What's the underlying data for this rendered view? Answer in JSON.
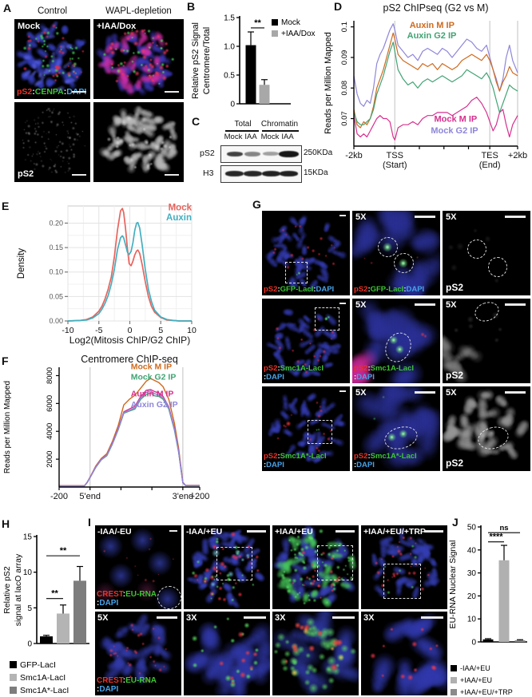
{
  "panels": {
    "A": {
      "tag": "A",
      "col1": "Control",
      "col2": "WAPL-depletion",
      "mock": "Mock",
      "iaa": "+IAA/Dox",
      "ps2": "pS2",
      "cenpa": "CENPA",
      "dapi": "DAPI",
      "sep": ":"
    },
    "B": {
      "tag": "B"
    },
    "C": {
      "tag": "C",
      "total": "Total",
      "chromatin": "Chromatin",
      "mock": "Mock",
      "iaa": "IAA",
      "ps2": "pS2",
      "h3": "H3",
      "mw_ps2": "250KDa",
      "mw_h3": "15KDa"
    },
    "D": {
      "tag": "D"
    },
    "E": {
      "tag": "E"
    },
    "F": {
      "tag": "F"
    },
    "G": {
      "tag": "G",
      "zoom": "5X",
      "ps2": "pS2",
      "dapi": "DAPI",
      "sep": ":",
      "row1_stain": "GFP-LacI",
      "row2_stain": "Smc1A-LacI",
      "row3_stain": "Smc1A*-LacI"
    },
    "H": {
      "tag": "H"
    },
    "I": {
      "tag": "I",
      "conditions": [
        "-IAA/-EU",
        "-IAA/+EU",
        "+IAA/+EU",
        "+IAA/+EU/+TRP"
      ],
      "zooms": [
        "5X",
        "3X",
        "3X",
        "3X"
      ],
      "crest": "CREST",
      "eurna": "EU-RNA",
      "dapi": "DAPI",
      "sep": ":"
    },
    "J": {
      "tag": "J"
    }
  },
  "colors": {
    "stain_red": "#ee3124",
    "stain_green": "#3ec433",
    "stain_blue": "#47a3ea",
    "chip_orange": "#cf6a1e",
    "chip_green": "#41a374",
    "chip_magenta": "#d6308f",
    "chip_purple": "#8e86d9",
    "density_red": "#e8635c",
    "density_teal": "#43afc0"
  },
  "chart_data": {
    "B": {
      "type": "bar",
      "title": "",
      "ylabel": [
        "Relative pS2 Signal",
        "Centromere/Total"
      ],
      "categories": [
        "Mock",
        "+IAA/Dox"
      ],
      "values": [
        1.02,
        0.33
      ],
      "errors": [
        0.23,
        0.09
      ],
      "bar_colors": [
        "#000000",
        "#a8a8a8"
      ],
      "ylim": [
        0,
        1.5
      ],
      "yticks": [
        {
          "v": 0,
          "l": "0"
        },
        {
          "v": 0.5,
          "l": "0.5"
        },
        {
          "v": 1,
          "l": "1.0"
        },
        {
          "v": 1.5,
          "l": "1.5"
        }
      ],
      "significance": [
        {
          "a": 0,
          "b": 1,
          "y": 1.32,
          "label": "**"
        }
      ],
      "legend": [
        {
          "label": "Mock",
          "color": "#000000"
        },
        {
          "label": "+IAA/Dox",
          "color": "#a8a8a8"
        }
      ]
    },
    "D": {
      "type": "line",
      "title": "pS2 ChIPseq (G2 vs M)",
      "ylabel": [
        "Reads per Million Mapped"
      ],
      "xlim": [
        0,
        100
      ],
      "ylim": [
        0.061,
        0.102
      ],
      "yticks": [
        {
          "v": 0.07,
          "l": "0.07"
        },
        {
          "v": 0.08,
          "l": "0.08"
        },
        {
          "v": 0.09,
          "l": "0.09"
        },
        {
          "v": 0.1,
          "l": "0.1"
        }
      ],
      "xticks": [
        {
          "x": 0,
          "l": "-2kb"
        },
        {
          "x": 25,
          "l": "TSS",
          "l2": "(Start)"
        },
        {
          "x": 83,
          "l": "TES",
          "l2": "(End)"
        },
        {
          "x": 100,
          "l": "+2kb"
        }
      ],
      "xminor": [
        40,
        55,
        70
      ],
      "vlines": [
        25,
        83,
        100
      ],
      "x": [
        0,
        2,
        4,
        6,
        8,
        10,
        12,
        14,
        16,
        18,
        20,
        22,
        24,
        25,
        27,
        30,
        33,
        36,
        39,
        42,
        45,
        48,
        51,
        54,
        57,
        60,
        63,
        66,
        69,
        72,
        75,
        78,
        81,
        83,
        85,
        87,
        89,
        91,
        93,
        95,
        97,
        100
      ],
      "series": [
        {
          "name": "Mock G2 IP",
          "color": "#8e86d9",
          "y": [
            0.084,
            0.078,
            0.075,
            0.074,
            0.076,
            0.075,
            0.08,
            0.088,
            0.091,
            0.093,
            0.096,
            0.099,
            0.101,
            0.099,
            0.094,
            0.092,
            0.09,
            0.091,
            0.089,
            0.092,
            0.093,
            0.092,
            0.091,
            0.093,
            0.092,
            0.09,
            0.092,
            0.094,
            0.096,
            0.095,
            0.093,
            0.092,
            0.094,
            0.09,
            0.086,
            0.083,
            0.079,
            0.083,
            0.09,
            0.094,
            0.089,
            0.085
          ]
        },
        {
          "name": "Auxin M IP",
          "color": "#cf6a1e",
          "y": [
            0.073,
            0.068,
            0.067,
            0.069,
            0.068,
            0.07,
            0.074,
            0.08,
            0.083,
            0.086,
            0.09,
            0.094,
            0.098,
            0.096,
            0.091,
            0.089,
            0.088,
            0.087,
            0.086,
            0.088,
            0.087,
            0.088,
            0.086,
            0.088,
            0.087,
            0.086,
            0.087,
            0.089,
            0.09,
            0.091,
            0.09,
            0.089,
            0.091,
            0.089,
            0.086,
            0.082,
            0.079,
            0.082,
            0.084,
            0.087,
            0.085,
            0.084
          ]
        },
        {
          "name": "Auxin G2 IP",
          "color": "#41a374",
          "y": [
            0.072,
            0.069,
            0.068,
            0.068,
            0.069,
            0.07,
            0.073,
            0.078,
            0.081,
            0.084,
            0.088,
            0.092,
            0.095,
            0.092,
            0.086,
            0.083,
            0.081,
            0.082,
            0.08,
            0.082,
            0.083,
            0.082,
            0.083,
            0.084,
            0.083,
            0.082,
            0.083,
            0.084,
            0.086,
            0.085,
            0.084,
            0.083,
            0.085,
            0.083,
            0.08,
            0.076,
            0.072,
            0.075,
            0.078,
            0.081,
            0.08,
            0.079
          ]
        },
        {
          "name": "Mock M IP",
          "color": "#d6308f",
          "y": [
            0.071,
            0.065,
            0.064,
            0.065,
            0.064,
            0.066,
            0.068,
            0.07,
            0.071,
            0.07,
            0.07,
            0.069,
            0.064,
            0.063,
            0.067,
            0.068,
            0.068,
            0.069,
            0.068,
            0.07,
            0.071,
            0.071,
            0.072,
            0.072,
            0.072,
            0.071,
            0.072,
            0.073,
            0.074,
            0.076,
            0.077,
            0.075,
            0.072,
            0.069,
            0.066,
            0.068,
            0.072,
            0.073,
            0.068,
            0.064,
            0.068,
            0.071
          ]
        }
      ],
      "annotations": [
        {
          "text": "Auxin M IP",
          "color": "#cf6a1e",
          "x": 34,
          "y": 0.0997,
          "anchor": "start"
        },
        {
          "text": "Auxin G2 IP",
          "color": "#41a374",
          "x": 32.5,
          "y": 0.0962,
          "anchor": "start"
        },
        {
          "text": "Mock M IP",
          "color": "#d6308f",
          "x": 49,
          "y": 0.0689,
          "anchor": "start"
        },
        {
          "text": "Mock G2 IP",
          "color": "#8e86d9",
          "x": 47,
          "y": 0.0652,
          "anchor": "start"
        }
      ]
    },
    "E": {
      "type": "line",
      "ggplot": true,
      "title": "",
      "ylabel": [
        "Density"
      ],
      "xlabel": "Log2(Mitosis ChIP/G2 ChIP)",
      "xlim": [
        -10,
        10
      ],
      "ylim": [
        0,
        0.235
      ],
      "yticks": [
        {
          "v": 0,
          "l": "0.00"
        },
        {
          "v": 0.05,
          "l": "0.05"
        },
        {
          "v": 0.1,
          "l": "0.10"
        },
        {
          "v": 0.15,
          "l": "0.15"
        },
        {
          "v": 0.2,
          "l": "0.20"
        }
      ],
      "xticks": [
        {
          "x": -10,
          "l": "-10"
        },
        {
          "x": -5,
          "l": "-5"
        },
        {
          "x": 0,
          "l": "0"
        },
        {
          "x": 5,
          "l": "5"
        },
        {
          "x": 10,
          "l": "10"
        }
      ],
      "x": [
        -10,
        -8,
        -7,
        -6,
        -5,
        -4.5,
        -4,
        -3.5,
        -3,
        -2.5,
        -2,
        -1.5,
        -1.2,
        -1,
        -0.7,
        -0.4,
        -0.1,
        0.2,
        0.5,
        0.8,
        1.1,
        1.3,
        1.6,
        2,
        2.5,
        3,
        3.5,
        4,
        5,
        6,
        7,
        8,
        10
      ],
      "series": [
        {
          "name": "Mock",
          "color": "#e8635c",
          "y": [
            0,
            0.001,
            0.003,
            0.008,
            0.02,
            0.03,
            0.045,
            0.065,
            0.09,
            0.13,
            0.185,
            0.225,
            0.23,
            0.222,
            0.19,
            0.15,
            0.117,
            0.113,
            0.122,
            0.135,
            0.143,
            0.145,
            0.138,
            0.115,
            0.08,
            0.05,
            0.03,
            0.018,
            0.007,
            0.002,
            0.001,
            0,
            0
          ]
        },
        {
          "name": "Auxin",
          "color": "#43afc0",
          "y": [
            0,
            0.001,
            0.002,
            0.006,
            0.015,
            0.024,
            0.036,
            0.052,
            0.075,
            0.105,
            0.145,
            0.17,
            0.174,
            0.17,
            0.156,
            0.141,
            0.136,
            0.142,
            0.16,
            0.185,
            0.2,
            0.201,
            0.19,
            0.155,
            0.105,
            0.065,
            0.04,
            0.022,
            0.008,
            0.003,
            0.001,
            0,
            0
          ]
        }
      ],
      "annotations": [
        {
          "text": "Mock",
          "color": "#e8635c",
          "x": 10,
          "y": 0.226,
          "anchor": "end"
        },
        {
          "text": "Auxin",
          "color": "#43afc0",
          "x": 10,
          "y": 0.206,
          "anchor": "end"
        }
      ]
    },
    "F": {
      "type": "line",
      "title": "Centromere ChIP-seq",
      "ylabel": [
        "Reads per Million Mapped"
      ],
      "xlim": [
        0,
        100
      ],
      "ylim": [
        0,
        8600
      ],
      "yticks": [
        {
          "v": 2000,
          "l": "2000"
        },
        {
          "v": 4000,
          "l": "4000"
        },
        {
          "v": 6000,
          "l": "6000"
        },
        {
          "v": 8000,
          "l": "8000"
        }
      ],
      "xticks": [
        {
          "x": 0,
          "l": "-200"
        },
        {
          "x": 22,
          "l": "5'end"
        },
        {
          "x": 88,
          "l": "3'end"
        },
        {
          "x": 100,
          "l": "+200"
        }
      ],
      "xminor": [
        44,
        66
      ],
      "vlines": [
        22,
        88
      ],
      "x": [
        0,
        10,
        18,
        20,
        23,
        26,
        30,
        34,
        38,
        42,
        46,
        50,
        54,
        58,
        62,
        65,
        68,
        71,
        74,
        78,
        82,
        85,
        88,
        90,
        100
      ],
      "series": [
        {
          "name": "Mock M IP",
          "color": "#cf6a1e",
          "y": [
            90,
            90,
            90,
            350,
            900,
            1500,
            2050,
            2400,
            3300,
            4400,
            5900,
            6300,
            6600,
            7100,
            7600,
            7800,
            7650,
            7500,
            7200,
            6300,
            4600,
            2800,
            350,
            120,
            120
          ]
        },
        {
          "name": "Mock G2 IP",
          "color": "#41a374",
          "y": [
            80,
            80,
            80,
            320,
            850,
            1400,
            1950,
            2250,
            3100,
            4100,
            5300,
            5450,
            5600,
            6300,
            6650,
            6750,
            6550,
            6500,
            6300,
            5600,
            4100,
            2500,
            300,
            100,
            100
          ]
        },
        {
          "name": "Auxin M IP",
          "color": "#d6308f",
          "y": [
            85,
            85,
            85,
            340,
            880,
            1450,
            2000,
            2300,
            3200,
            4200,
            5400,
            5600,
            5800,
            6500,
            6950,
            7000,
            6850,
            6750,
            6500,
            5750,
            4250,
            2600,
            320,
            110,
            110
          ]
        },
        {
          "name": "Auxin G2 IP",
          "color": "#8e86d9",
          "y": [
            82,
            82,
            82,
            330,
            860,
            1420,
            1980,
            2280,
            3150,
            4150,
            5350,
            5500,
            5700,
            6400,
            6800,
            6900,
            6700,
            6600,
            6400,
            5680,
            4180,
            2550,
            310,
            105,
            105
          ]
        }
      ],
      "annotations": [
        {
          "text": "Mock M IP",
          "color": "#cf6a1e",
          "x": 51,
          "y": 8450,
          "anchor": "start"
        },
        {
          "text": "Mock G2 IP",
          "color": "#41a374",
          "x": 51,
          "y": 7700,
          "anchor": "start"
        },
        {
          "text": "Auxin M IP",
          "color": "#d6308f",
          "x": 51,
          "y": 6500,
          "anchor": "start"
        },
        {
          "text": "Auxin G2 IP",
          "color": "#8e86d9",
          "x": 51,
          "y": 5720,
          "anchor": "start"
        }
      ]
    },
    "H": {
      "type": "bar",
      "title": "",
      "ylabel": [
        "Relative pS2",
        "signal at lacO array"
      ],
      "categories": [
        "GFP-LacI",
        "Smc1A-LacI",
        "Smc1A*-LacI"
      ],
      "values": [
        1.0,
        4.2,
        8.8
      ],
      "errors": [
        0.15,
        1.2,
        2.0
      ],
      "bar_colors": [
        "#000000",
        "#b4b4b4",
        "#7d7d7d"
      ],
      "ylim": [
        0,
        15
      ],
      "yticks": [
        {
          "v": 0,
          "l": "0"
        },
        {
          "v": 5,
          "l": "5"
        },
        {
          "v": 10,
          "l": "10"
        },
        {
          "v": 15,
          "l": "15"
        }
      ],
      "significance": [
        {
          "a": 0,
          "b": 1,
          "y": 6.3,
          "label": "**"
        },
        {
          "a": 0,
          "b": 2,
          "y": 12.3,
          "label": "**"
        }
      ],
      "legend": [
        {
          "label": "GFP-LacI",
          "color": "#000000"
        },
        {
          "label": "Smc1A-LacI",
          "color": "#b4b4b4"
        },
        {
          "label": "Smc1A*-LacI",
          "color": "#7d7d7d"
        }
      ]
    },
    "J": {
      "type": "bar",
      "title": "",
      "ylabel": [
        "EU-RNA Nuclear Signal"
      ],
      "categories": [
        "-IAA/+EU",
        "+IAA/+EU",
        "+IAA/+EU/+TRP"
      ],
      "values": [
        1.1,
        35.5,
        0.7
      ],
      "errors": [
        0.3,
        6.5,
        0.25
      ],
      "bar_colors": [
        "#000000",
        "#b0b0b0",
        "#8a8a8a"
      ],
      "ylim": [
        0,
        50
      ],
      "yticks": [
        {
          "v": 0,
          "l": "0"
        },
        {
          "v": 10,
          "l": "10"
        },
        {
          "v": 20,
          "l": "20"
        },
        {
          "v": 30,
          "l": "30"
        },
        {
          "v": 40,
          "l": "40"
        },
        {
          "v": 50,
          "l": "50"
        }
      ],
      "significance": [
        {
          "a": 0,
          "b": 1,
          "y": 43.5,
          "label": "****"
        },
        {
          "a": 0,
          "b": 2,
          "y": 47.5,
          "label": "ns"
        }
      ],
      "legend": [
        {
          "label": "-IAA/+EU",
          "color": "#000000"
        },
        {
          "label": "+IAA/+EU",
          "color": "#b0b0b0"
        },
        {
          "label": "+IAA/+EU/+TRP",
          "color": "#8a8a8a"
        }
      ]
    }
  }
}
